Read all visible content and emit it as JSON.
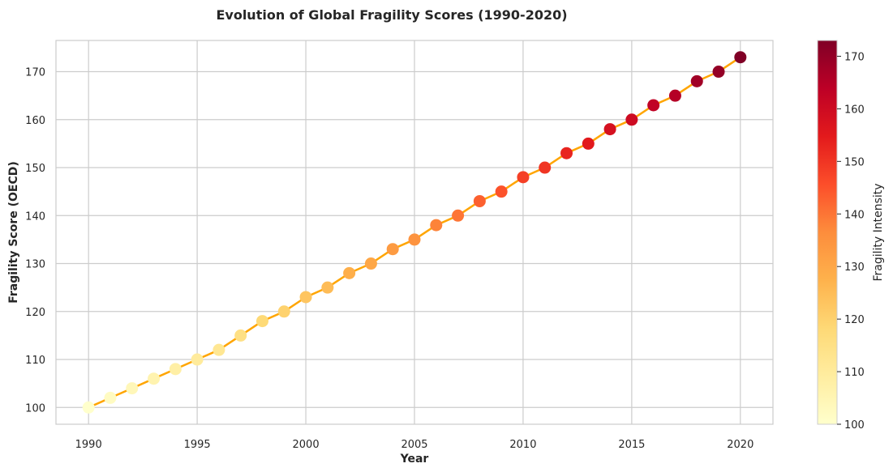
{
  "chart_data": {
    "type": "line",
    "title": "Evolution of Global Fragility Scores (1990-2020)",
    "xlabel": "Year",
    "ylabel": "Fragility Score (OECD)",
    "xlim": [
      1988.5,
      2021.5
    ],
    "ylim": [
      96.5,
      176.5
    ],
    "x_ticks": [
      1990,
      1995,
      2000,
      2005,
      2010,
      2015,
      2020
    ],
    "y_ticks": [
      100,
      110,
      120,
      130,
      140,
      150,
      160,
      170
    ],
    "grid": true,
    "line_color": "#FFA500",
    "x": [
      1990,
      1991,
      1992,
      1993,
      1994,
      1995,
      1996,
      1997,
      1998,
      1999,
      2000,
      2001,
      2002,
      2003,
      2004,
      2005,
      2006,
      2007,
      2008,
      2009,
      2010,
      2011,
      2012,
      2013,
      2014,
      2015,
      2016,
      2017,
      2018,
      2019,
      2020
    ],
    "y": [
      100,
      102,
      104,
      106,
      108,
      110,
      112,
      115,
      118,
      120,
      123,
      125,
      128,
      130,
      133,
      135,
      138,
      140,
      143,
      145,
      148,
      150,
      153,
      155,
      158,
      160,
      163,
      165,
      168,
      170,
      173
    ],
    "colorbar": {
      "label": "Fragility Intensity",
      "colormap": "YlOrRd",
      "range": [
        100,
        173
      ],
      "ticks": [
        100,
        110,
        120,
        130,
        140,
        150,
        160,
        170
      ],
      "stops": [
        "#ffffcc",
        "#ffeda0",
        "#fed976",
        "#feb24c",
        "#fd8d3c",
        "#fc4e2a",
        "#e31a1c",
        "#bd0026",
        "#800026"
      ]
    }
  }
}
